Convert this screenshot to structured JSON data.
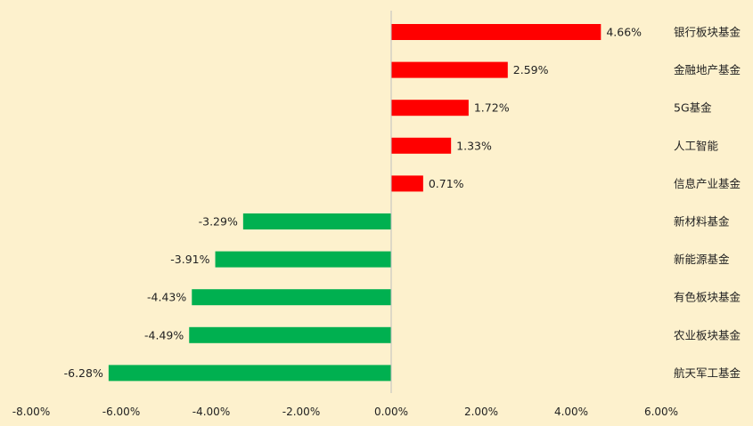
{
  "chart_data": {
    "type": "bar",
    "orientation": "horizontal",
    "title": "",
    "xlabel": "",
    "ylabel": "",
    "categories": [
      "银行板块基金",
      "金融地产基金",
      "5G基金",
      "人工智能",
      "信息产业基金",
      "新材料基金",
      "新能源基金",
      "有色板块基金",
      "农业板块基金",
      "航天军工基金"
    ],
    "values": [
      4.66,
      2.59,
      1.72,
      1.33,
      0.71,
      -3.29,
      -3.91,
      -4.43,
      -4.49,
      -6.28
    ],
    "value_labels": [
      "4.66%",
      "2.59%",
      "1.72%",
      "1.33%",
      "0.71%",
      "-3.29%",
      "-3.91%",
      "-4.43%",
      "-4.49%",
      "-6.28%"
    ],
    "xlim": [
      -8,
      6
    ],
    "xticks": [
      -8,
      -6,
      -4,
      -2,
      0,
      2,
      4,
      6
    ],
    "xtick_labels": [
      "-8.00%",
      "-6.00%",
      "-4.00%",
      "-2.00%",
      "0.00%",
      "2.00%",
      "4.00%",
      "6.00%"
    ],
    "grid": false,
    "legend": "none",
    "colors": {
      "positive": "#ff0000",
      "negative": "#00b050",
      "axis": "#bfbfbf",
      "background": "#fdf1cd"
    }
  }
}
